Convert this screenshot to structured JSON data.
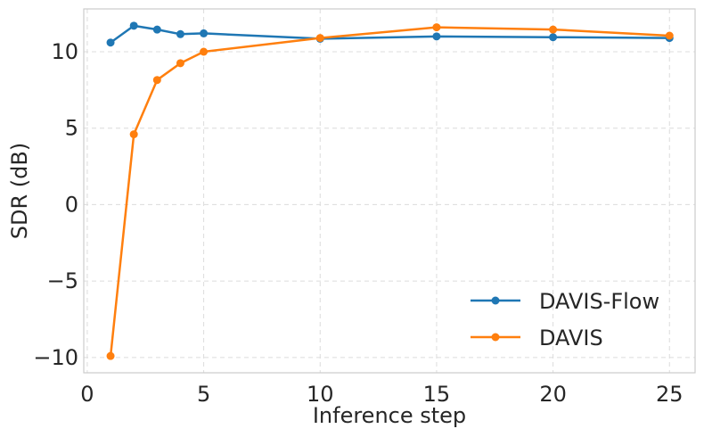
{
  "chart_data": {
    "type": "line",
    "title": "",
    "xlabel": "Inference step",
    "ylabel": "SDR (dB)",
    "xlim": [
      -0.15,
      26.1
    ],
    "ylim": [
      -11.0,
      12.8
    ],
    "xticks": [
      0,
      5,
      10,
      15,
      20,
      25
    ],
    "yticks": [
      -10,
      -5,
      0,
      5,
      10
    ],
    "xtick_labels": [
      "0",
      "5",
      "10",
      "15",
      "20",
      "25"
    ],
    "ytick_labels": [
      "−10",
      "−5",
      "0",
      "5",
      "10"
    ],
    "grid": true,
    "legend_position": "lower-right",
    "series": [
      {
        "name": "DAVIS-Flow",
        "color": "#1f77b4",
        "x": [
          1,
          2,
          3,
          4,
          5,
          10,
          15,
          20,
          25
        ],
        "y": [
          10.6,
          11.7,
          11.45,
          11.15,
          11.2,
          10.85,
          11.0,
          10.95,
          10.9
        ]
      },
      {
        "name": "DAVIS",
        "color": "#ff7f0e",
        "x": [
          1,
          2,
          3,
          4,
          5,
          10,
          15,
          20,
          25
        ],
        "y": [
          -9.9,
          4.6,
          8.15,
          9.25,
          10.0,
          10.9,
          11.6,
          11.45,
          11.05
        ]
      }
    ]
  }
}
